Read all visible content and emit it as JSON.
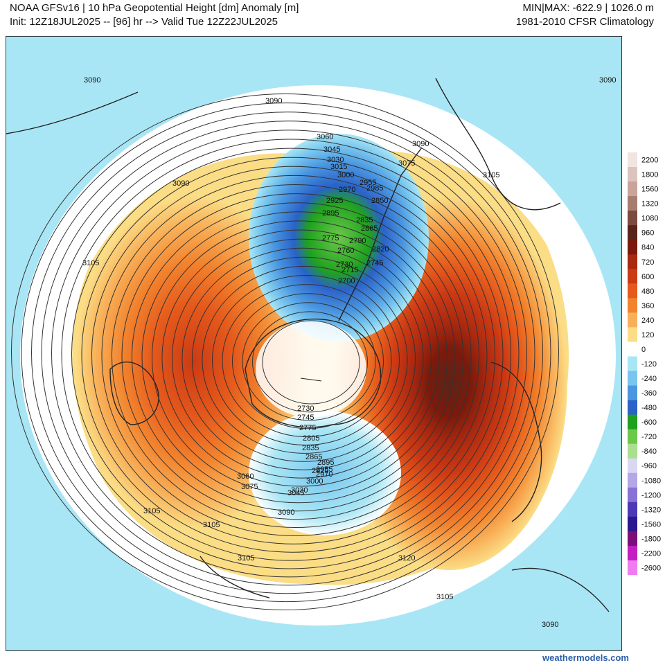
{
  "header": {
    "title_line1": "NOAA GFSv16 | 10 hPa Geopotential Height [dm] Anomaly [m]",
    "title_line2": "Init: 12Z18JUL2025 -- [96] hr --> Valid Tue 12Z22JUL2025",
    "minmax": "MIN|MAX: -622.9 | 1026.0 m",
    "climatology": "1981-2010 CFSR Climatology"
  },
  "credit": "weathermodels.com",
  "colors": {
    "land_outline": "#222222",
    "contour": "#333333",
    "scale": [
      {
        "label": "2200",
        "color": "#f2e4e1"
      },
      {
        "label": "1800",
        "color": "#dcc3bd"
      },
      {
        "label": "1560",
        "color": "#c9a49a"
      },
      {
        "label": "1320",
        "color": "#a77c6e"
      },
      {
        "label": "1080",
        "color": "#7c4a3e"
      },
      {
        "label": "960",
        "color": "#5a2418"
      },
      {
        "label": "840",
        "color": "#7b1a0c"
      },
      {
        "label": "720",
        "color": "#a82810"
      },
      {
        "label": "600",
        "color": "#cc3a14"
      },
      {
        "label": "480",
        "color": "#e55a1c"
      },
      {
        "label": "360",
        "color": "#f2832e"
      },
      {
        "label": "240",
        "color": "#f8b058"
      },
      {
        "label": "120",
        "color": "#fbdd86"
      },
      {
        "label": "0",
        "color": "#ffffff"
      },
      {
        "label": "-120",
        "color": "#a9e6f5"
      },
      {
        "label": "-240",
        "color": "#78c6ef"
      },
      {
        "label": "-360",
        "color": "#4a96e0"
      },
      {
        "label": "-480",
        "color": "#2a62c8"
      },
      {
        "label": "-600",
        "color": "#1fa11f"
      },
      {
        "label": "-720",
        "color": "#6cc84a"
      },
      {
        "label": "-840",
        "color": "#a9e08e"
      },
      {
        "label": "-960",
        "color": "#d9d7f2"
      },
      {
        "label": "-1080",
        "color": "#b3a7e6"
      },
      {
        "label": "-1200",
        "color": "#8872d6"
      },
      {
        "label": "-1320",
        "color": "#4e38b5"
      },
      {
        "label": "-1560",
        "color": "#2b1790"
      },
      {
        "label": "-1800",
        "color": "#7a0f7a"
      },
      {
        "label": "-2200",
        "color": "#c21ec2"
      },
      {
        "label": "-2600",
        "color": "#f07cf0"
      }
    ]
  },
  "contour_labels": [
    {
      "text": "3090",
      "pos": "upper-left"
    },
    {
      "text": "3090",
      "pos": "top-center"
    },
    {
      "text": "3060",
      "pos": "north"
    },
    {
      "text": "3045",
      "pos": "north"
    },
    {
      "text": "3030",
      "pos": "north"
    },
    {
      "text": "3015",
      "pos": "north"
    },
    {
      "text": "3000",
      "pos": "north"
    },
    {
      "text": "2985",
      "pos": "north"
    },
    {
      "text": "2970",
      "pos": "north"
    },
    {
      "text": "2955",
      "pos": "north"
    },
    {
      "text": "2925",
      "pos": "north"
    },
    {
      "text": "2895",
      "pos": "north"
    },
    {
      "text": "2865",
      "pos": "north"
    },
    {
      "text": "2850",
      "pos": "north"
    },
    {
      "text": "2835",
      "pos": "north"
    },
    {
      "text": "2820",
      "pos": "north"
    },
    {
      "text": "2790",
      "pos": "north"
    },
    {
      "text": "2775",
      "pos": "north"
    },
    {
      "text": "2760",
      "pos": "north"
    },
    {
      "text": "2745",
      "pos": "north"
    },
    {
      "text": "2730",
      "pos": "north"
    },
    {
      "text": "2715",
      "pos": "north"
    },
    {
      "text": "2700",
      "pos": "north"
    },
    {
      "text": "3090",
      "pos": "north-east"
    },
    {
      "text": "3075",
      "pos": "north-east"
    },
    {
      "text": "3105",
      "pos": "east"
    },
    {
      "text": "3090",
      "pos": "upper-right"
    },
    {
      "text": "3090",
      "pos": "left"
    },
    {
      "text": "3105",
      "pos": "left"
    },
    {
      "text": "2730",
      "pos": "south"
    },
    {
      "text": "2745",
      "pos": "south"
    },
    {
      "text": "2775",
      "pos": "south"
    },
    {
      "text": "2805",
      "pos": "south"
    },
    {
      "text": "2835",
      "pos": "south"
    },
    {
      "text": "2865",
      "pos": "south"
    },
    {
      "text": "2895",
      "pos": "south"
    },
    {
      "text": "2925",
      "pos": "south"
    },
    {
      "text": "2955",
      "pos": "south"
    },
    {
      "text": "2970",
      "pos": "south"
    },
    {
      "text": "3000",
      "pos": "south"
    },
    {
      "text": "3030",
      "pos": "south"
    },
    {
      "text": "3045",
      "pos": "south"
    },
    {
      "text": "3060",
      "pos": "south"
    },
    {
      "text": "3075",
      "pos": "south"
    },
    {
      "text": "3090",
      "pos": "south"
    },
    {
      "text": "3105",
      "pos": "lower-left"
    },
    {
      "text": "3105",
      "pos": "lower-left"
    },
    {
      "text": "3105",
      "pos": "bottom"
    },
    {
      "text": "3105",
      "pos": "bottom"
    },
    {
      "text": "3120",
      "pos": "lower-right"
    },
    {
      "text": "3090",
      "pos": "bottom-right"
    }
  ]
}
